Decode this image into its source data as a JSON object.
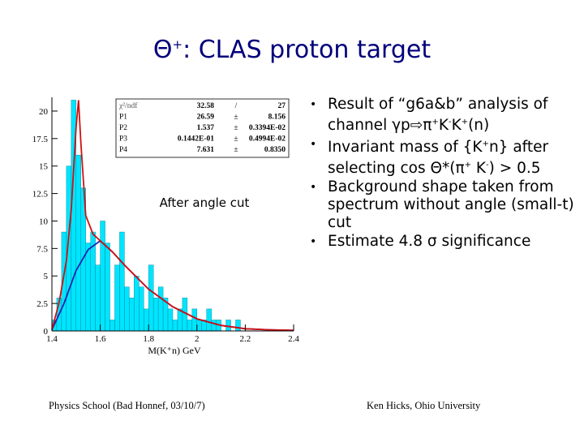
{
  "slide": {
    "title_symbol": "Θ",
    "title_sup": "+",
    "title_rest": ": CLAS proton target"
  },
  "bullets": [
    {
      "html": "Result of “g6a&amp;b” analysis of channel γp⇨π<sup>+</sup>K<sup>-</sup>K<sup>+</sup>(n)"
    },
    {
      "html": "Invariant mass of {K<sup>+</sup>n} after selecting cos Θ*(π<sup>+</sup> K<sup>-</sup>) &gt; 0.5"
    },
    {
      "html": "Background shape taken from spectrum without angle (small-t) cut"
    },
    {
      "html": "Estimate 4.8 σ significance"
    }
  ],
  "footer": {
    "left": "Physics School (Bad Honnef, 03/10/7)",
    "right": "Ken Hicks, Ohio University"
  },
  "chart_data": {
    "type": "bar",
    "xlabel": "M(K⁺n) GeV",
    "ylabel": "",
    "xlim": [
      1.4,
      2.4
    ],
    "ylim": [
      0,
      21.25
    ],
    "xticks": [
      "1.4",
      "1.6",
      "1.8",
      "2",
      "2.2",
      "2.4"
    ],
    "yticks": [
      "0",
      "2.5",
      "5",
      "7.5",
      "10",
      "12.5",
      "15",
      "17.5",
      "20"
    ],
    "annotation": "After angle cut",
    "bin_width": 0.02,
    "x": [
      1.4,
      1.42,
      1.44,
      1.46,
      1.48,
      1.5,
      1.52,
      1.54,
      1.56,
      1.58,
      1.6,
      1.62,
      1.64,
      1.66,
      1.68,
      1.7,
      1.72,
      1.74,
      1.76,
      1.78,
      1.8,
      1.82,
      1.84,
      1.86,
      1.88,
      1.9,
      1.92,
      1.94,
      1.96,
      1.98,
      2.0,
      2.02,
      2.04,
      2.06,
      2.08,
      2.1,
      2.12,
      2.14,
      2.16,
      2.18
    ],
    "values": [
      1.0,
      3.0,
      9.0,
      15.0,
      21.0,
      16.0,
      13.0,
      8.0,
      9.0,
      6.0,
      10.0,
      8.0,
      1.0,
      6.0,
      9.0,
      4.0,
      3.0,
      5.0,
      4.0,
      2.0,
      6.0,
      3.0,
      4.0,
      3.0,
      2.0,
      1.0,
      2.0,
      3.0,
      1.0,
      2.0,
      1.0,
      1.0,
      2.0,
      1.0,
      1.0,
      0.0,
      1.0,
      0.0,
      1.0,
      0.0
    ],
    "fit_total": [
      [
        1.4,
        0.1
      ],
      [
        1.43,
        2.6
      ],
      [
        1.46,
        6.4
      ],
      [
        1.48,
        11.0
      ],
      [
        1.5,
        18.5
      ],
      [
        1.51,
        21.0
      ],
      [
        1.52,
        17.0
      ],
      [
        1.54,
        10.5
      ],
      [
        1.57,
        8.8
      ],
      [
        1.6,
        8.2
      ],
      [
        1.65,
        7.2
      ],
      [
        1.7,
        6.0
      ],
      [
        1.8,
        3.8
      ],
      [
        1.9,
        2.2
      ],
      [
        2.0,
        1.1
      ],
      [
        2.1,
        0.5
      ],
      [
        2.2,
        0.2
      ],
      [
        2.3,
        0.1
      ],
      [
        2.4,
        0.05
      ]
    ],
    "fit_background": [
      [
        1.4,
        0.1
      ],
      [
        1.45,
        2.5
      ],
      [
        1.5,
        5.5
      ],
      [
        1.55,
        7.4
      ],
      [
        1.6,
        8.2
      ],
      [
        1.65,
        7.2
      ],
      [
        1.7,
        6.0
      ],
      [
        1.8,
        3.8
      ],
      [
        1.9,
        2.2
      ],
      [
        2.0,
        1.1
      ],
      [
        2.1,
        0.5
      ],
      [
        2.2,
        0.2
      ],
      [
        2.3,
        0.1
      ],
      [
        2.4,
        0.05
      ]
    ],
    "stats_box": [
      [
        "χ²/ndf",
        "32.58",
        "/",
        "27"
      ],
      [
        "P1",
        "26.59",
        "±",
        "8.156"
      ],
      [
        "P2",
        "1.537",
        "±",
        "0.3394E-02"
      ],
      [
        "P3",
        "0.1442E-01",
        "±",
        "0.4994E-02"
      ],
      [
        "P4",
        "7.631",
        "±",
        "0.8350"
      ]
    ],
    "colors": {
      "bars": "#00e5ff",
      "fit_total": "#d01010",
      "fit_background": "#2020b0"
    }
  }
}
